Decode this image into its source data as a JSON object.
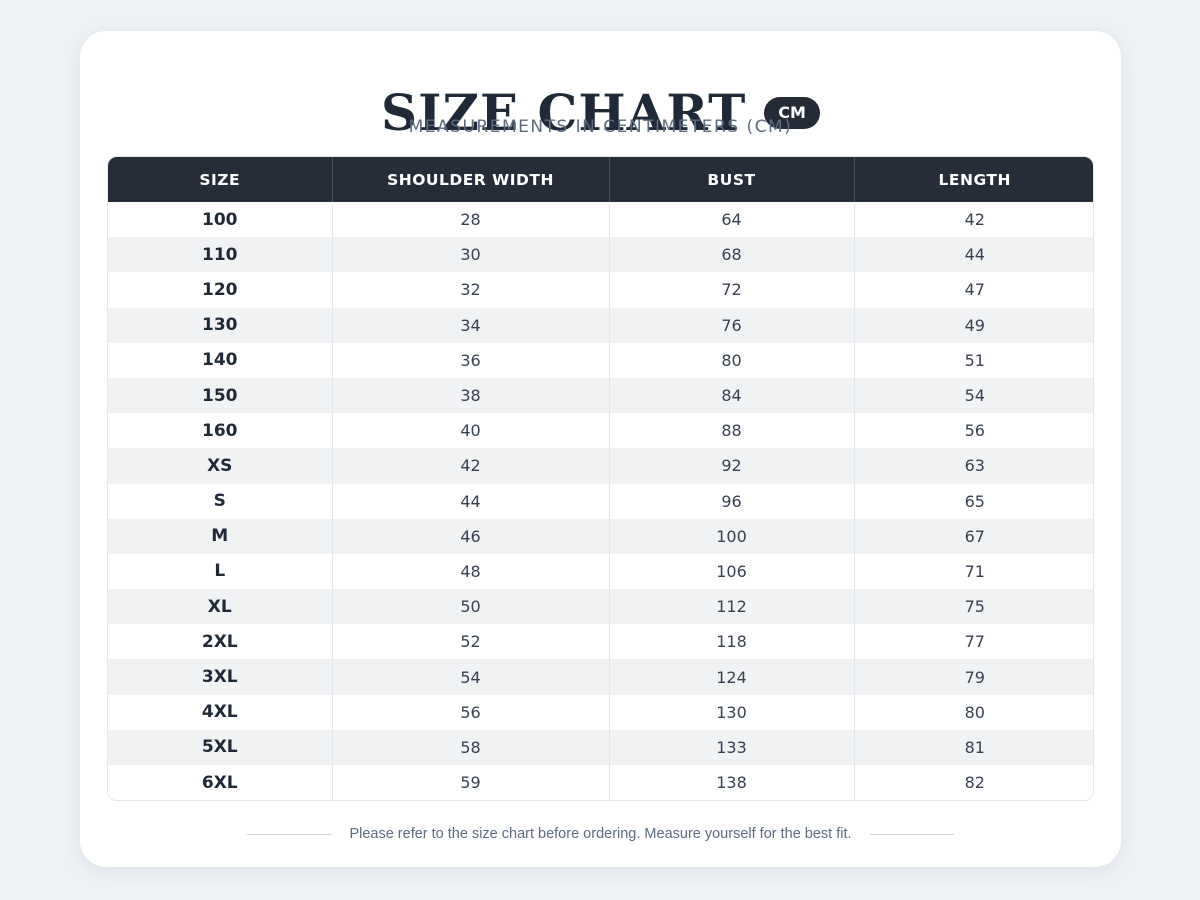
{
  "header": {
    "title": "SIZE CHART",
    "unit_badge": "CM",
    "subtitle": "MEASUREMENTS IN CENTIMETERS (CM)"
  },
  "table": {
    "columns": [
      "SIZE",
      "SHOULDER WIDTH",
      "BUST",
      "LENGTH"
    ],
    "rows": [
      {
        "size": "100",
        "shoulder_width": "28",
        "bust": "64",
        "length": "42"
      },
      {
        "size": "110",
        "shoulder_width": "30",
        "bust": "68",
        "length": "44"
      },
      {
        "size": "120",
        "shoulder_width": "32",
        "bust": "72",
        "length": "47"
      },
      {
        "size": "130",
        "shoulder_width": "34",
        "bust": "76",
        "length": "49"
      },
      {
        "size": "140",
        "shoulder_width": "36",
        "bust": "80",
        "length": "51"
      },
      {
        "size": "150",
        "shoulder_width": "38",
        "bust": "84",
        "length": "54"
      },
      {
        "size": "160",
        "shoulder_width": "40",
        "bust": "88",
        "length": "56"
      },
      {
        "size": "XS",
        "shoulder_width": "42",
        "bust": "92",
        "length": "63"
      },
      {
        "size": "S",
        "shoulder_width": "44",
        "bust": "96",
        "length": "65"
      },
      {
        "size": "M",
        "shoulder_width": "46",
        "bust": "100",
        "length": "67"
      },
      {
        "size": "L",
        "shoulder_width": "48",
        "bust": "106",
        "length": "71"
      },
      {
        "size": "XL",
        "shoulder_width": "50",
        "bust": "112",
        "length": "75"
      },
      {
        "size": "2XL",
        "shoulder_width": "52",
        "bust": "118",
        "length": "77"
      },
      {
        "size": "3XL",
        "shoulder_width": "54",
        "bust": "124",
        "length": "79"
      },
      {
        "size": "4XL",
        "shoulder_width": "56",
        "bust": "130",
        "length": "80"
      },
      {
        "size": "5XL",
        "shoulder_width": "58",
        "bust": "133",
        "length": "81"
      },
      {
        "size": "6XL",
        "shoulder_width": "59",
        "bust": "138",
        "length": "82"
      }
    ]
  },
  "footer": {
    "note": "Please refer to the size chart before ordering. Measure yourself for the best fit."
  },
  "colors": {
    "header_bg": "#262d38",
    "title_text": "#1f2937",
    "subtitle_text": "#5d6b80",
    "row_alt": "#f1f2f4"
  }
}
